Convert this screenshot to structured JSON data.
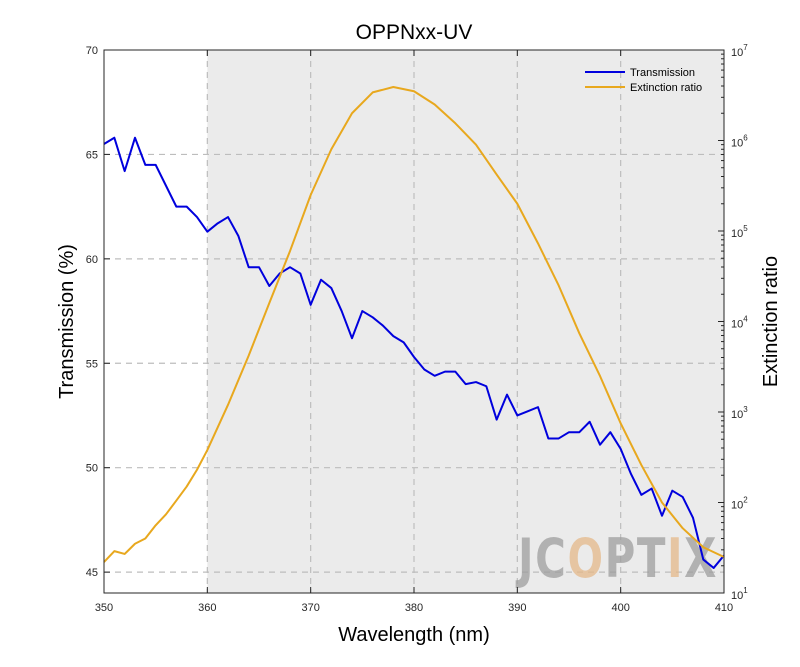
{
  "chart_data": {
    "type": "line",
    "title": "OPPNxx-UV",
    "xlabel": "Wavelength (nm)",
    "ylabel_left": "Transmission (%)",
    "ylabel_right": "Extinction ratio",
    "xlim": [
      350,
      410
    ],
    "ylim_left": [
      44,
      70
    ],
    "ylim_right_log": [
      10,
      10000000
    ],
    "x_ticks": [
      350,
      360,
      370,
      380,
      390,
      400,
      410
    ],
    "y_left_ticks": [
      45,
      50,
      55,
      60,
      65,
      70
    ],
    "y_right_ticks": [
      {
        "base": "10",
        "exp": "1",
        "value": 10
      },
      {
        "base": "10",
        "exp": "2",
        "value": 100
      },
      {
        "base": "10",
        "exp": "3",
        "value": 1000
      },
      {
        "base": "10",
        "exp": "4",
        "value": 10000
      },
      {
        "base": "10",
        "exp": "5",
        "value": 100000
      },
      {
        "base": "10",
        "exp": "6",
        "value": 1000000
      },
      {
        "base": "10",
        "exp": "7",
        "value": 10000000
      }
    ],
    "shaded_region_x": [
      360,
      410
    ],
    "grid": true,
    "legend_position": "top-right",
    "series": [
      {
        "name": "Transmission",
        "axis": "left",
        "color": "#0000DD",
        "x": [
          350,
          351,
          352,
          353,
          354,
          355,
          356,
          357,
          358,
          359,
          360,
          361,
          362,
          363,
          364,
          365,
          366,
          367,
          368,
          369,
          370,
          371,
          372,
          373,
          374,
          375,
          376,
          377,
          378,
          379,
          380,
          381,
          382,
          383,
          384,
          385,
          386,
          387,
          388,
          389,
          390,
          391,
          392,
          393,
          394,
          395,
          396,
          397,
          398,
          399,
          400,
          401,
          402,
          403,
          404,
          405,
          406,
          407,
          408,
          409,
          410
        ],
        "y": [
          65.5,
          65.8,
          64.2,
          65.8,
          64.5,
          64.5,
          63.5,
          62.5,
          62.5,
          62.0,
          61.3,
          61.7,
          62.0,
          61.1,
          59.6,
          59.6,
          58.7,
          59.3,
          59.6,
          59.3,
          57.8,
          59.0,
          58.6,
          57.5,
          56.2,
          57.5,
          57.2,
          56.8,
          56.3,
          56.0,
          55.3,
          54.7,
          54.4,
          54.6,
          54.6,
          54.0,
          54.1,
          53.9,
          52.3,
          53.5,
          52.5,
          52.7,
          52.9,
          51.4,
          51.4,
          51.7,
          51.7,
          52.2,
          51.1,
          51.7,
          50.9,
          49.7,
          48.7,
          49.0,
          47.7,
          48.9,
          48.6,
          47.6,
          45.6,
          45.2,
          45.8
        ]
      },
      {
        "name": "Extinction ratio",
        "axis": "right",
        "color": "#E8A81E",
        "x": [
          350,
          351,
          352,
          353,
          354,
          355,
          356,
          357,
          358,
          359,
          360,
          362,
          364,
          366,
          368,
          370,
          372,
          374,
          376,
          378,
          380,
          382,
          384,
          386,
          388,
          390,
          392,
          394,
          396,
          398,
          400,
          402,
          404,
          406,
          408,
          410
        ],
        "y": [
          22,
          29,
          27,
          35,
          40,
          56,
          74,
          105,
          150,
          230,
          380,
          1200,
          4200,
          16000,
          60000,
          250000,
          800000,
          2000000,
          3400000,
          3900000,
          3500000,
          2500000,
          1550000,
          900000,
          420000,
          200000,
          73000,
          25000,
          7400,
          2500,
          750,
          260,
          100,
          52,
          32,
          25
        ]
      }
    ]
  },
  "watermark": {
    "text": "JCOPTIX",
    "colors": [
      "#9E9E9E",
      "#E5B98A"
    ]
  },
  "colors": {
    "shade": "#EBEBEB",
    "grid": "#BDBDBD",
    "axis": "#262626"
  }
}
